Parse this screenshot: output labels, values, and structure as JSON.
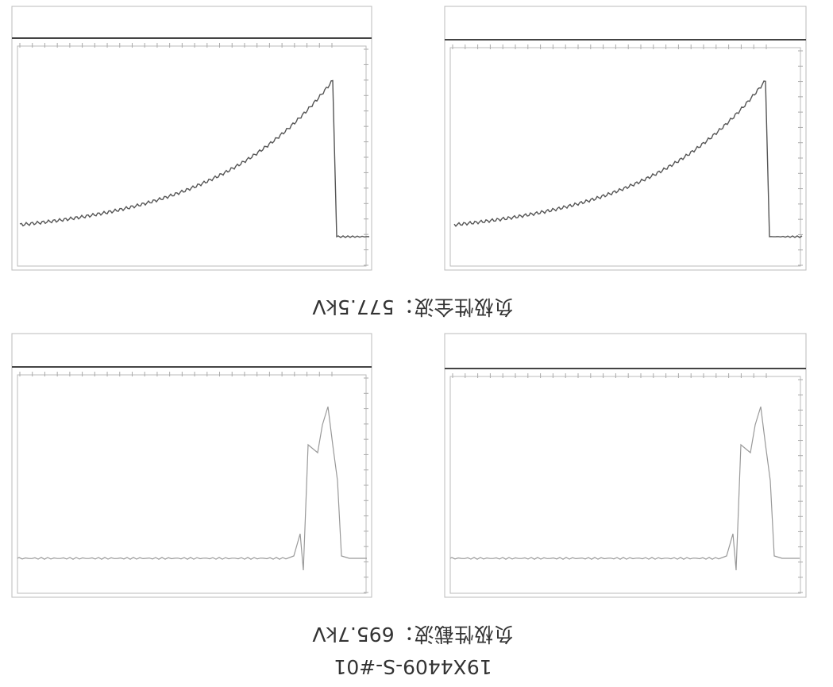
{
  "document": {
    "captions": [
      "19X4409-S-#01",
      "负极性截波：695.7kV",
      "负极性全波：577.5kV"
    ]
  }
}
